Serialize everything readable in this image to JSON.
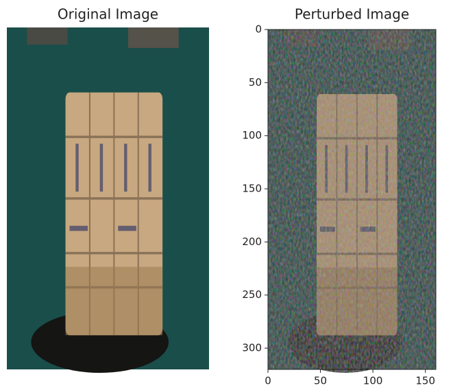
{
  "chart_data": [
    {
      "type": "image",
      "title": "Original Image"
    },
    {
      "type": "image",
      "title": "Perturbed Image",
      "xlim": [
        0,
        160
      ],
      "ylim": [
        320,
        0
      ],
      "xticks": [
        0,
        50,
        100,
        150
      ],
      "yticks": [
        0,
        50,
        100,
        150,
        200,
        250,
        300
      ]
    }
  ]
}
